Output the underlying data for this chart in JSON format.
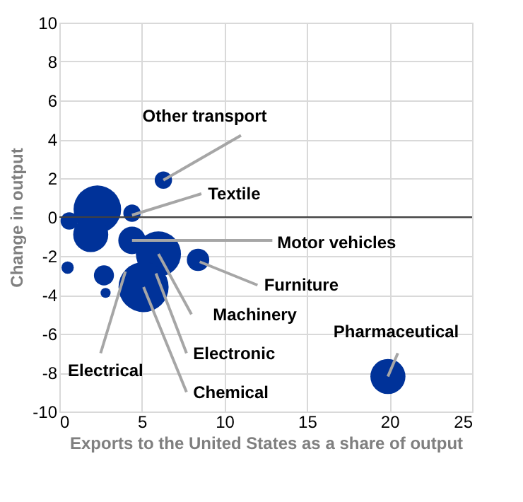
{
  "chart_data": {
    "type": "bubble",
    "xlabel": "Exports to the United States as a share of output",
    "ylabel": "Change in output",
    "x": [
      0.6,
      2.3,
      1.9,
      4.4,
      6.3,
      4.4,
      6.0,
      5.1,
      8.4,
      0.5,
      2.7,
      2.8,
      19.9
    ],
    "series": [
      {
        "color": "#003299",
        "values": [
          -0.2,
          0.4,
          -0.9,
          0.2,
          1.9,
          -1.2,
          -1.9,
          -3.6,
          -2.2,
          -2.6,
          -3.0,
          -3.9,
          -8.2
        ],
        "sizes": [
          0.12,
          0.9,
          0.49,
          0.12,
          0.12,
          0.3,
          0.81,
          1,
          0.2,
          0.06,
          0.16,
          0.04,
          0.49
        ]
      }
    ],
    "xlim": [
      0,
      25
    ],
    "xticks": [
      0,
      5,
      10,
      15,
      20,
      25
    ],
    "ylim": [
      -10,
      10
    ],
    "yticks": [
      -10,
      -8,
      -6,
      -4,
      -2,
      0,
      2,
      4,
      6,
      8,
      10
    ],
    "grid": true,
    "ref_lines": [
      {
        "axis": "y",
        "value": 0,
        "color": "#404040"
      }
    ],
    "annotations": [
      {
        "text": "Other transport",
        "x": 6.3,
        "y": 1.9
      },
      {
        "text": "Textile",
        "x": 4.4,
        "y": 0.1
      },
      {
        "text": "Motor vehicles",
        "x": 4.4,
        "y": -1.2
      },
      {
        "text": "Furniture",
        "x": 8.5,
        "y": -2.3
      },
      {
        "text": "Machinery",
        "x": 6.0,
        "y": -1.9
      },
      {
        "text": "Electronic",
        "x": 5.85,
        "y": -2.9
      },
      {
        "text": "Chemical",
        "x": 5.1,
        "y": -3.6
      },
      {
        "text": "Electrical",
        "x": 4.0,
        "y": -2.8
      },
      {
        "text": "Pharmaceutical",
        "x": 19.9,
        "y": -8.2
      }
    ]
  }
}
